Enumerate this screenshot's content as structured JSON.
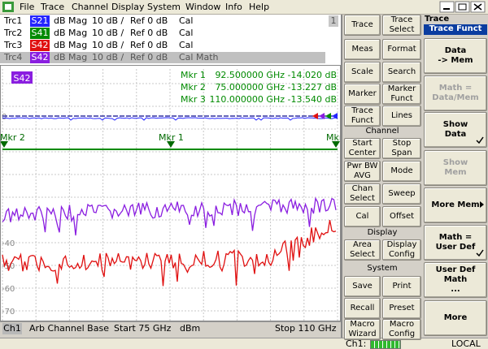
{
  "menu": [
    "File",
    "Trace",
    "Channel",
    "Display",
    "System",
    "Window",
    "Info",
    "Help"
  ],
  "traces": [
    {
      "name": "Trc1",
      "param": "S21",
      "format": "dB Mag",
      "scale": "10 dB /",
      "ref": "Ref 0 dB",
      "cal": "Cal",
      "color": "#2424ff"
    },
    {
      "name": "Trc2",
      "param": "S41",
      "format": "dB Mag",
      "scale": "10 dB /",
      "ref": "Ref 0 dB",
      "cal": "Cal",
      "color": "#008a00"
    },
    {
      "name": "Trc3",
      "param": "S42",
      "format": "dB Mag",
      "scale": "10 dB /",
      "ref": "Ref 0 dB",
      "cal": "Cal",
      "color": "#e01010"
    },
    {
      "name": "Trc4",
      "param": "S42",
      "format": "dB Mag",
      "scale": "10 dB /",
      "ref": "Ref 0 dB",
      "cal": "Cal Math",
      "color": "#8a1ee0"
    }
  ],
  "channel_number": "1",
  "plot": {
    "active_trace": "S42",
    "markers": [
      {
        "name": "Mkr 1",
        "freq": "92.500000 GHz",
        "value": "-14.020 dB"
      },
      {
        "name": "Mkr 2",
        "freq": "75.000000 GHz",
        "value": "-13.227 dB"
      },
      {
        "name": "Mkr 3",
        "freq": "110.000000 GHz",
        "value": "-13.540 dB"
      }
    ],
    "y_labels": [
      "0",
      "-40",
      "-50",
      "-60",
      "-70"
    ],
    "marker_flags": [
      "Mkr 2",
      "Mkr 1",
      "Mkr"
    ]
  },
  "status": {
    "channel": "Ch1",
    "mode": "Arb Channel Base",
    "start": "Start 75 GHz",
    "unit": "dBm",
    "stop": "Stop 110 GHz"
  },
  "hardkeys": [
    [
      "Trace"
    ],
    [
      "Trace",
      "Select"
    ],
    [
      "Meas"
    ],
    [
      "Format"
    ],
    [
      "Scale"
    ],
    [
      "Search"
    ],
    [
      "Marker"
    ],
    [
      "Marker",
      "Funct"
    ],
    [
      "Trace",
      "Funct"
    ],
    [
      "Lines"
    ],
    [
      "Start",
      "Center"
    ],
    [
      "Stop",
      "Span"
    ],
    [
      "Pwr BW",
      "AVG"
    ],
    [
      "Mode"
    ],
    [
      "Chan",
      "Select"
    ],
    [
      "Sweep"
    ],
    [
      "Cal"
    ],
    [
      "Offset"
    ],
    [
      "Area",
      "Select"
    ],
    [
      "Display",
      "Config"
    ],
    [
      "Save"
    ],
    [
      "Print"
    ],
    [
      "Recall"
    ],
    [
      "Preset"
    ],
    [
      "Macro",
      "Wizard"
    ],
    [
      "Macro",
      "Config"
    ]
  ],
  "hardkey_groups": [
    "Channel",
    "Display",
    "System"
  ],
  "softkey_menu": {
    "title": "Trace",
    "subtitle": "Trace Funct",
    "keys": [
      {
        "lines": [
          "Data",
          "-> Mem"
        ],
        "enabled": true,
        "checked": false,
        "submenu": false
      },
      {
        "lines": [
          "Math =",
          "Data/Mem"
        ],
        "enabled": false,
        "checked": false,
        "submenu": false
      },
      {
        "lines": [
          "Show",
          "Data"
        ],
        "enabled": true,
        "checked": true,
        "submenu": false
      },
      {
        "lines": [
          "Show",
          "Mem"
        ],
        "enabled": false,
        "checked": false,
        "submenu": false
      },
      {
        "lines": [
          "More Mem"
        ],
        "enabled": true,
        "checked": false,
        "submenu": true
      },
      {
        "lines": [
          "Math =",
          "User Def"
        ],
        "enabled": true,
        "checked": true,
        "submenu": false
      },
      {
        "lines": [
          "User Def",
          "Math",
          "..."
        ],
        "enabled": true,
        "checked": false,
        "submenu": false
      },
      {
        "lines": [
          "More"
        ],
        "enabled": true,
        "checked": false,
        "submenu": false
      }
    ]
  },
  "status_bar": {
    "channel": "Ch1:",
    "remote": "LOCAL"
  }
}
